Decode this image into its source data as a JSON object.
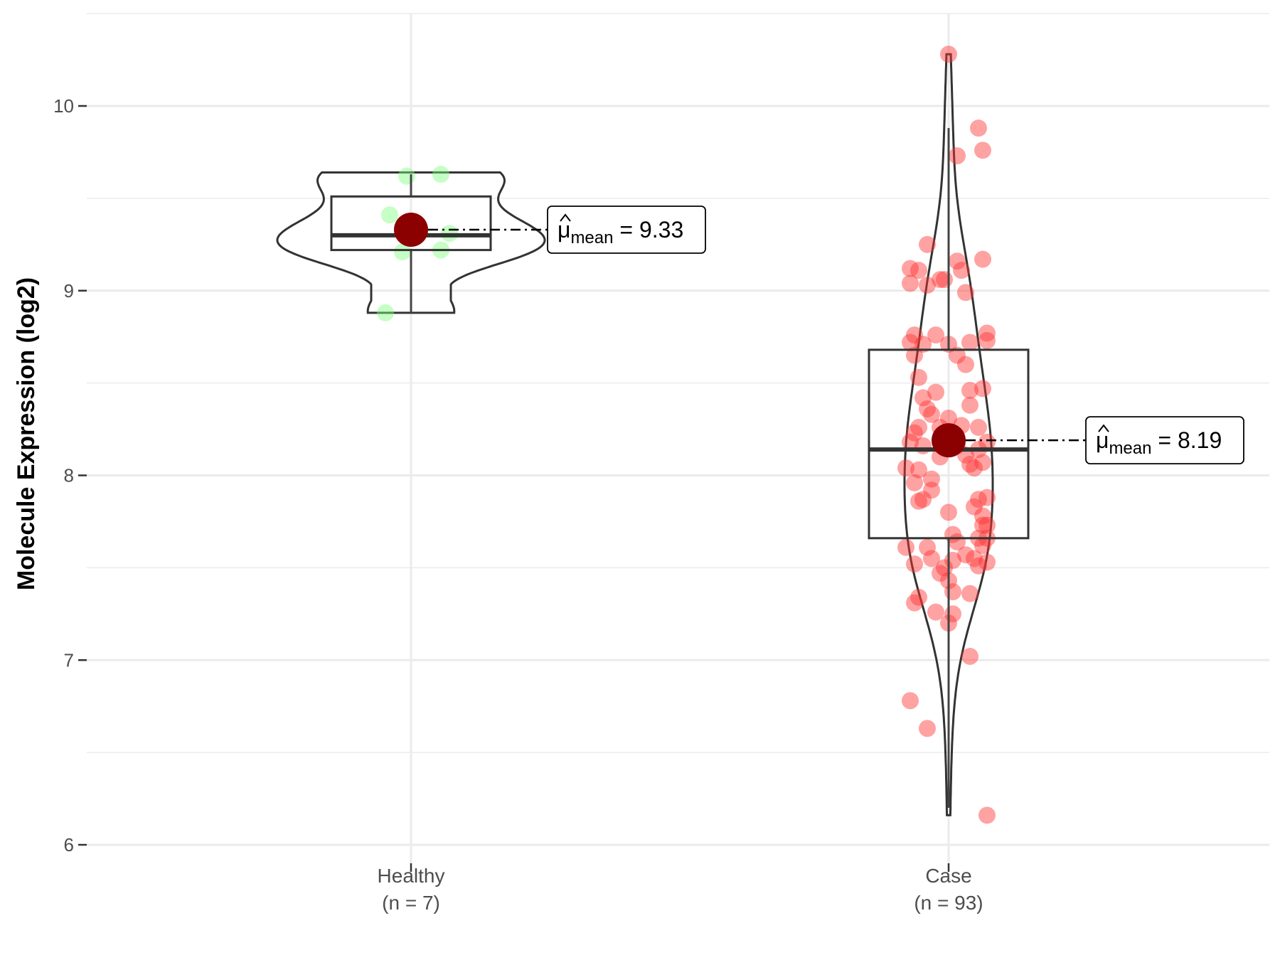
{
  "chart_data": {
    "type": "violin",
    "ylabel": "Molecule Expression (log2)",
    "ylim": [
      5.9,
      10.5
    ],
    "yticks": [
      6,
      7,
      8,
      9,
      10
    ],
    "grid": true,
    "mean_symbol": "μ",
    "mean_subscript": "mean",
    "groups": [
      {
        "name": "Healthy",
        "n_label": "(n = 7)",
        "point_color": "#7fff7f",
        "mean": 9.33,
        "mean_label": "9.33",
        "box": {
          "q1": 9.22,
          "median": 9.3,
          "q3": 9.51,
          "whisker_low": 8.88,
          "whisker_high": 9.63
        },
        "violin_range": [
          8.88,
          9.64
        ],
        "points": [
          [
            -0.06,
            8.88
          ],
          [
            -0.05,
            9.41
          ],
          [
            -0.02,
            9.21
          ],
          [
            -0.01,
            9.62
          ],
          [
            0.07,
            9.22
          ],
          [
            0.07,
            9.63
          ],
          [
            0.09,
            9.31
          ]
        ]
      },
      {
        "name": "Case",
        "n_label": "(n = 93)",
        "point_color": "#ff3030",
        "mean": 8.19,
        "mean_label": "8.19",
        "box": {
          "q1": 7.66,
          "median": 8.14,
          "q3": 8.68,
          "whisker_low": 6.2,
          "whisker_high": 9.88
        },
        "violin_range": [
          6.16,
          10.28
        ],
        "points": [
          [
            0.0,
            10.28
          ],
          [
            -0.01,
            9.06
          ],
          [
            0.02,
            9.73
          ],
          [
            0.07,
            9.88
          ],
          [
            0.08,
            9.76
          ],
          [
            0.08,
            9.17
          ],
          [
            -0.05,
            9.25
          ],
          [
            -0.09,
            9.12
          ],
          [
            -0.07,
            9.11
          ],
          [
            -0.05,
            9.03
          ],
          [
            0.02,
            9.16
          ],
          [
            0.03,
            9.11
          ],
          [
            0.04,
            8.99
          ],
          [
            -0.02,
            9.06
          ],
          [
            -0.09,
            9.04
          ],
          [
            -0.08,
            8.76
          ],
          [
            -0.09,
            8.72
          ],
          [
            -0.08,
            8.65
          ],
          [
            -0.03,
            8.76
          ],
          [
            0.0,
            8.71
          ],
          [
            0.02,
            8.65
          ],
          [
            0.04,
            8.6
          ],
          [
            0.09,
            8.77
          ],
          [
            0.09,
            8.73
          ],
          [
            0.08,
            8.47
          ],
          [
            0.05,
            8.46
          ],
          [
            0.05,
            8.38
          ],
          [
            -0.07,
            8.53
          ],
          [
            -0.06,
            8.42
          ],
          [
            -0.05,
            8.36
          ],
          [
            -0.04,
            8.33
          ],
          [
            -0.02,
            8.26
          ],
          [
            0.0,
            8.31
          ],
          [
            0.03,
            8.27
          ],
          [
            0.07,
            8.26
          ],
          [
            -0.08,
            8.23
          ],
          [
            -0.07,
            8.26
          ],
          [
            -0.09,
            8.18
          ],
          [
            -0.06,
            8.16
          ],
          [
            -0.01,
            8.23
          ],
          [
            0.02,
            8.16
          ],
          [
            0.04,
            8.11
          ],
          [
            0.05,
            8.06
          ],
          [
            0.07,
            8.14
          ],
          [
            0.09,
            8.18
          ],
          [
            0.08,
            8.07
          ],
          [
            -0.1,
            8.04
          ],
          [
            -0.07,
            8.03
          ],
          [
            -0.04,
            7.98
          ],
          [
            -0.08,
            7.96
          ],
          [
            -0.04,
            7.92
          ],
          [
            -0.06,
            7.87
          ],
          [
            -0.07,
            7.86
          ],
          [
            0.0,
            7.8
          ],
          [
            0.07,
            7.87
          ],
          [
            0.09,
            7.88
          ],
          [
            0.06,
            7.83
          ],
          [
            0.08,
            7.78
          ],
          [
            0.09,
            7.73
          ],
          [
            0.07,
            7.66
          ],
          [
            0.01,
            7.68
          ],
          [
            0.02,
            7.64
          ],
          [
            -0.05,
            7.61
          ],
          [
            -0.04,
            7.55
          ],
          [
            -0.1,
            7.61
          ],
          [
            -0.08,
            7.52
          ],
          [
            -0.02,
            7.47
          ],
          [
            -0.01,
            7.5
          ],
          [
            0.01,
            7.54
          ],
          [
            0.04,
            7.57
          ],
          [
            0.06,
            7.55
          ],
          [
            0.07,
            7.51
          ],
          [
            0.09,
            7.53
          ],
          [
            0.08,
            7.62
          ],
          [
            0.09,
            7.66
          ],
          [
            0.01,
            7.37
          ],
          [
            0.05,
            7.36
          ],
          [
            -0.07,
            7.34
          ],
          [
            -0.08,
            7.31
          ],
          [
            -0.03,
            7.26
          ],
          [
            0.01,
            7.25
          ],
          [
            0.0,
            7.2
          ],
          [
            0.05,
            7.02
          ],
          [
            -0.09,
            6.78
          ],
          [
            -0.05,
            6.63
          ],
          [
            0.09,
            6.16
          ],
          [
            0.0,
            7.43
          ],
          [
            -0.03,
            8.45
          ],
          [
            0.05,
            8.72
          ],
          [
            -0.06,
            8.71
          ],
          [
            0.08,
            7.73
          ],
          [
            -0.02,
            8.1
          ],
          [
            0.06,
            8.04
          ]
        ]
      }
    ]
  }
}
